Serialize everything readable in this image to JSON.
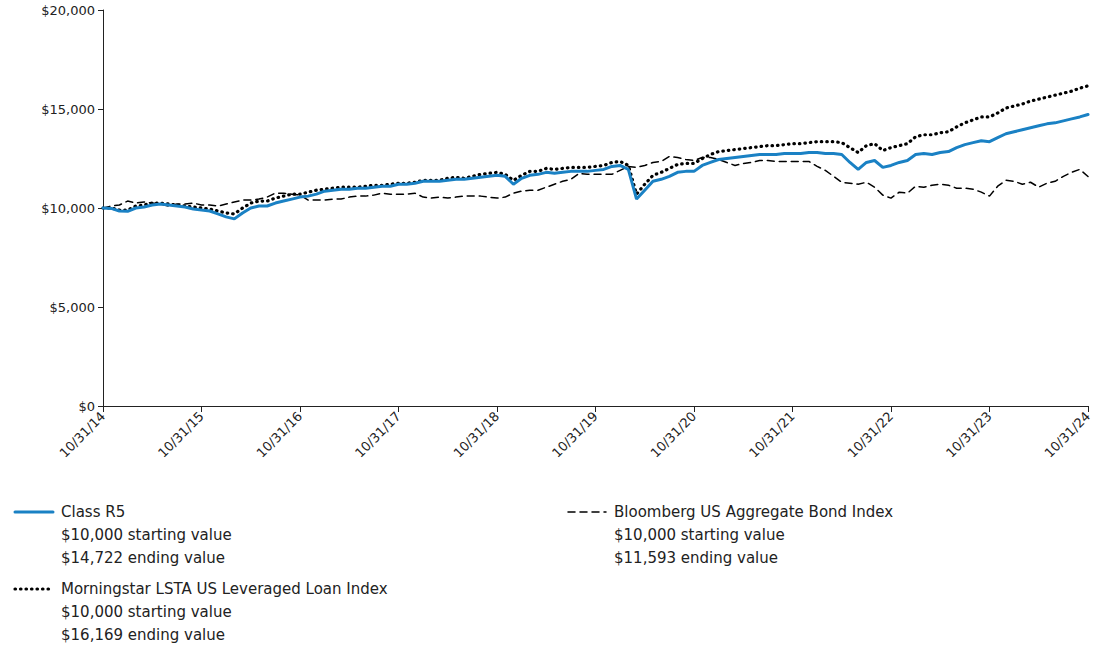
{
  "chart_data": {
    "type": "line",
    "categories": [
      "10/31/14",
      null,
      null,
      null,
      null,
      null,
      null,
      null,
      null,
      null,
      null,
      null,
      "10/31/15",
      null,
      null,
      null,
      null,
      null,
      null,
      null,
      null,
      null,
      null,
      null,
      "10/31/16",
      null,
      null,
      null,
      null,
      null,
      null,
      null,
      null,
      null,
      null,
      null,
      "10/31/17",
      null,
      null,
      null,
      null,
      null,
      null,
      null,
      null,
      null,
      null,
      null,
      "10/31/18",
      null,
      null,
      null,
      null,
      null,
      null,
      null,
      null,
      null,
      null,
      null,
      "10/31/19",
      null,
      null,
      null,
      null,
      null,
      null,
      null,
      null,
      null,
      null,
      null,
      "10/31/20",
      null,
      null,
      null,
      null,
      null,
      null,
      null,
      null,
      null,
      null,
      null,
      "10/31/21",
      null,
      null,
      null,
      null,
      null,
      null,
      null,
      null,
      null,
      null,
      null,
      "10/31/22",
      null,
      null,
      null,
      null,
      null,
      null,
      null,
      null,
      null,
      null,
      null,
      "10/31/23",
      null,
      null,
      null,
      null,
      null,
      null,
      null,
      null,
      null,
      null,
      null,
      "10/31/24"
    ],
    "series": [
      {
        "name": "Class R5",
        "color": "#1a81c4",
        "line_style": "solid",
        "annotations": [
          "$10,000 starting value",
          "$14,722 ending value"
        ],
        "values": [
          10000,
          9980,
          9850,
          9830,
          10000,
          10050,
          10150,
          10200,
          10150,
          10100,
          10050,
          9950,
          9900,
          9850,
          9700,
          9550,
          9450,
          9750,
          10000,
          10100,
          10100,
          10250,
          10350,
          10450,
          10550,
          10600,
          10700,
          10850,
          10900,
          10950,
          10950,
          11000,
          11000,
          11050,
          11100,
          11100,
          11200,
          11200,
          11250,
          11350,
          11350,
          11350,
          11400,
          11450,
          11450,
          11500,
          11550,
          11600,
          11650,
          11600,
          11200,
          11500,
          11650,
          11700,
          11800,
          11750,
          11800,
          11850,
          11850,
          11850,
          11900,
          11950,
          12100,
          12150,
          11950,
          10450,
          10900,
          11350,
          11450,
          11600,
          11800,
          11850,
          11850,
          12150,
          12300,
          12450,
          12500,
          12550,
          12600,
          12650,
          12700,
          12700,
          12700,
          12750,
          12750,
          12750,
          12800,
          12800,
          12750,
          12750,
          12700,
          12300,
          11950,
          12300,
          12400,
          12050,
          12150,
          12300,
          12400,
          12700,
          12750,
          12700,
          12800,
          12850,
          13050,
          13200,
          13300,
          13400,
          13350,
          13550,
          13750,
          13850,
          13950,
          14050,
          14150,
          14250,
          14300,
          14400,
          14500,
          14600,
          14722
        ]
      },
      {
        "name": "Morningstar LSTA US Leveraged Loan Index",
        "color": "#000000",
        "line_style": "dotted",
        "annotations": [
          "$10,000 starting value",
          "$16,169 ending value"
        ],
        "values": [
          10000,
          10000,
          9900,
          9900,
          10100,
          10150,
          10250,
          10250,
          10200,
          10150,
          10100,
          10050,
          10000,
          9950,
          9850,
          9750,
          9700,
          10000,
          10250,
          10350,
          10350,
          10500,
          10600,
          10700,
          10700,
          10800,
          10900,
          10950,
          11000,
          11050,
          11050,
          11050,
          11100,
          11150,
          11150,
          11200,
          11250,
          11250,
          11300,
          11400,
          11400,
          11400,
          11500,
          11550,
          11500,
          11600,
          11700,
          11750,
          11800,
          11700,
          11400,
          11650,
          11850,
          11850,
          12000,
          11950,
          12000,
          12050,
          12050,
          12050,
          12100,
          12150,
          12300,
          12350,
          12150,
          10700,
          11200,
          11650,
          11800,
          12000,
          12200,
          12250,
          12250,
          12500,
          12700,
          12850,
          12900,
          12950,
          13000,
          13050,
          13100,
          13150,
          13150,
          13200,
          13250,
          13250,
          13300,
          13350,
          13350,
          13350,
          13300,
          13050,
          12800,
          13150,
          13250,
          12900,
          13050,
          13150,
          13250,
          13600,
          13700,
          13700,
          13800,
          13850,
          14100,
          14300,
          14450,
          14600,
          14600,
          14800,
          15050,
          15150,
          15250,
          15400,
          15500,
          15600,
          15700,
          15800,
          15900,
          16050,
          16169
        ]
      },
      {
        "name": "Bloomberg US Aggregate Bond Index",
        "color": "#000000",
        "line_style": "dashed",
        "annotations": [
          "$10,000 starting value",
          "$11,593 ending value"
        ],
        "values": [
          10000,
          10100,
          10150,
          10350,
          10250,
          10300,
          10250,
          10200,
          10100,
          10200,
          10200,
          10250,
          10150,
          10150,
          10100,
          10200,
          10300,
          10400,
          10400,
          10450,
          10550,
          10750,
          10750,
          10700,
          10650,
          10400,
          10400,
          10400,
          10450,
          10450,
          10550,
          10600,
          10600,
          10650,
          10750,
          10700,
          10700,
          10700,
          10750,
          10550,
          10500,
          10550,
          10500,
          10550,
          10600,
          10600,
          10600,
          10550,
          10500,
          10550,
          10750,
          10850,
          10900,
          10900,
          11050,
          11200,
          11350,
          11450,
          11750,
          11700,
          11700,
          11700,
          11700,
          11900,
          12100,
          12050,
          12150,
          12300,
          12350,
          12600,
          12550,
          12450,
          12400,
          12550,
          12550,
          12450,
          12300,
          12150,
          12250,
          12300,
          12400,
          12400,
          12350,
          12350,
          12350,
          12350,
          12350,
          12100,
          11900,
          11600,
          11300,
          11250,
          11200,
          11300,
          11050,
          10650,
          10500,
          10800,
          10750,
          11100,
          11050,
          11150,
          11200,
          11150,
          11000,
          11000,
          10950,
          10800,
          10600,
          11100,
          11400,
          11350,
          11200,
          11300,
          11050,
          11250,
          11350,
          11600,
          11800,
          11950,
          11593
        ]
      }
    ],
    "ylim": [
      0,
      20000
    ],
    "yticks": [
      {
        "value": 0,
        "label": "$0"
      },
      {
        "value": 5000,
        "label": "$5,000"
      },
      {
        "value": 10000,
        "label": "$10,000"
      },
      {
        "value": 15000,
        "label": "$15,000"
      },
      {
        "value": 20000,
        "label": "$20,000"
      }
    ],
    "grid": false,
    "legend": "bottom"
  }
}
